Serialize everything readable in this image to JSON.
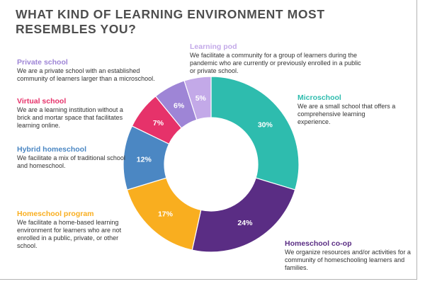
{
  "title": "WHAT KIND OF LEARNING ENVIRONMENT MOST RESEMBLES YOU?",
  "chart_data": {
    "type": "pie",
    "variant": "donut",
    "title": "WHAT KIND OF LEARNING ENVIRONMENT MOST RESEMBLES YOU?",
    "categories": [
      "Microschool",
      "Homeschool co-op",
      "Homeschool program",
      "Hybrid homeschool",
      "Virtual school",
      "Private school",
      "Learning pod"
    ],
    "values": [
      30,
      24,
      17,
      12,
      7,
      6,
      5
    ],
    "labels": [
      "30%",
      "24%",
      "17%",
      "12%",
      "7%",
      "6%",
      "5%"
    ],
    "colors": [
      "#2ebcae",
      "#5a2d84",
      "#f9ae1f",
      "#4b87c3",
      "#e6326a",
      "#9e85d6",
      "#c3a9e8"
    ],
    "legend": "annotations around the donut"
  },
  "descriptions": [
    {
      "name": "Learning pod",
      "desc": "We facilitate a community for a group of learners during the pandemic who are currently or previously enrolled in a public or private school.",
      "color": "#c3a9e8"
    },
    {
      "name": "Private school",
      "desc": "We are a private school with an established community of learners larger than a microschool.",
      "color": "#9e85d6"
    },
    {
      "name": "Virtual school",
      "desc": "We are a learning institution without a brick and mortar space that facilitates learning online.",
      "color": "#e6326a"
    },
    {
      "name": "Hybrid homeschool",
      "desc": "We facilitate a mix of traditional school and homeschool.",
      "color": "#4b87c3"
    },
    {
      "name": "Homeschool program",
      "desc": "We facilitate a home-based learning environment for learners who are not enrolled in a public, private, or other school.",
      "color": "#f9ae1f"
    },
    {
      "name": "Microschool",
      "desc": "We are a small school that offers a comprehensive learning experience.",
      "color": "#2ebcae"
    },
    {
      "name": "Homeschool co-op",
      "desc": "We organize resources and/or activities for a community of homeschooling learners and families.",
      "color": "#5a2d84"
    }
  ]
}
